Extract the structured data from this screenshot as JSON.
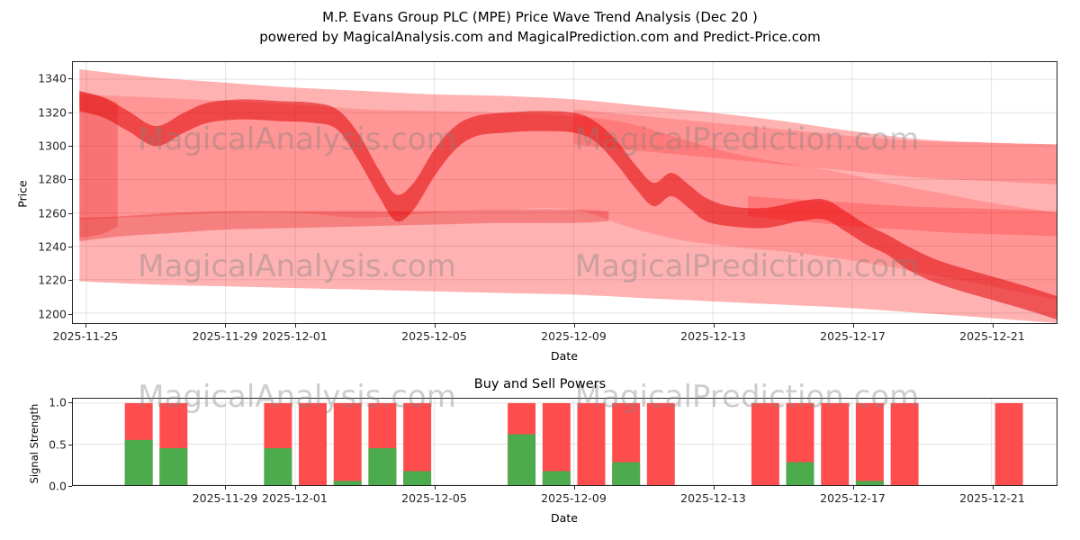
{
  "figure": {
    "title_line1": "M.P. Evans Group PLC (MPE) Price Wave Trend Analysis (Dec 20 )",
    "title_line2": "powered by MagicalAnalysis.com and MagicalPrediction.com and Predict-Price.com"
  },
  "watermarks": {
    "analysis": "MagicalAnalysis.com",
    "prediction": "MagicalPrediction.com"
  },
  "colors": {
    "band_red": "#ff0000",
    "band_dark_red": "#e00000",
    "sell_bar": "#ff4d4d",
    "buy_bar": "#4cab4c",
    "grid": "#e3e3e3"
  },
  "price_chart": {
    "ylabel": "Price",
    "xlabel": "Date",
    "yticks": [
      1200,
      1220,
      1240,
      1260,
      1280,
      1300,
      1320,
      1340
    ],
    "xticks": [
      {
        "label": "2025-11-25",
        "d": 0
      },
      {
        "label": "2025-11-29",
        "d": 4
      },
      {
        "label": "2025-12-01",
        "d": 6
      },
      {
        "label": "2025-12-05",
        "d": 10
      },
      {
        "label": "2025-12-09",
        "d": 14
      },
      {
        "label": "2025-12-13",
        "d": 18
      },
      {
        "label": "2025-12-17",
        "d": 22
      },
      {
        "label": "2025-12-21",
        "d": 26
      }
    ]
  },
  "signal_chart": {
    "title": "Buy and Sell Powers",
    "ylabel": "Signal Strength",
    "xlabel": "Date",
    "yticks": [
      {
        "label": "0.0",
        "v": 0
      },
      {
        "label": "0.5",
        "v": 0.5
      },
      {
        "label": "1.0",
        "v": 1
      }
    ],
    "xticks": [
      {
        "label": "2025-11-29",
        "d": 4
      },
      {
        "label": "2025-12-01",
        "d": 6
      },
      {
        "label": "2025-12-05",
        "d": 10
      },
      {
        "label": "2025-12-09",
        "d": 14
      },
      {
        "label": "2025-12-13",
        "d": 18
      },
      {
        "label": "2025-12-17",
        "d": 22
      },
      {
        "label": "2025-12-21",
        "d": 26
      }
    ]
  },
  "chart_data": [
    {
      "type": "area",
      "title": "M.P. Evans Group PLC (MPE) Price Wave Trend Analysis (Dec 20 )",
      "xlabel": "Date",
      "ylabel": "Price",
      "ylim": [
        1194,
        1350
      ],
      "x_axis": "day offset from 2025-11-25",
      "x_range": [
        -0.2,
        27.9
      ],
      "grid": true,
      "bands": [
        {
          "name": "envelope",
          "color": "#ff0000",
          "opacity": 0.3,
          "points": [
            [
              -0.2,
              1346,
              1219
            ],
            [
              2,
              1341,
              1217
            ],
            [
              4,
              1338,
              1216
            ],
            [
              6,
              1335,
              1215
            ],
            [
              8,
              1333,
              1214
            ],
            [
              10,
              1331,
              1213
            ],
            [
              12,
              1330,
              1212
            ],
            [
              14,
              1328,
              1211
            ],
            [
              16,
              1324,
              1209
            ],
            [
              18,
              1320,
              1207
            ],
            [
              20,
              1315,
              1205
            ],
            [
              22,
              1309,
              1203
            ],
            [
              24,
              1304,
              1200
            ],
            [
              26,
              1302,
              1197
            ],
            [
              27.9,
              1301,
              1194
            ]
          ]
        },
        {
          "name": "mid",
          "color": "#ff0000",
          "opacity": 0.16,
          "points": [
            [
              -0.2,
              1331,
              1256
            ],
            [
              2,
              1329,
              1258
            ],
            [
              4,
              1327,
              1260
            ],
            [
              6,
              1325,
              1260
            ],
            [
              8,
              1322,
              1257
            ],
            [
              10,
              1321,
              1260
            ],
            [
              12,
              1320,
              1262
            ],
            [
              14,
              1318,
              1262
            ],
            [
              15.5,
              1314,
              1252
            ],
            [
              17,
              1305,
              1244
            ],
            [
              18.5,
              1296,
              1240
            ],
            [
              20,
              1290,
              1237
            ],
            [
              21.5,
              1285,
              1233
            ],
            [
              23,
              1278,
              1228
            ],
            [
              24.5,
              1272,
              1222
            ],
            [
              26,
              1266,
              1216
            ],
            [
              27.9,
              1260,
              1208
            ]
          ]
        },
        {
          "name": "main-trend",
          "color": "#e00000",
          "opacity": 0.52,
          "points": [
            [
              -0.2,
              1333,
              1321
            ],
            [
              0.5,
              1329,
              1317
            ],
            [
              1.2,
              1321,
              1309
            ],
            [
              2,
              1312,
              1300
            ],
            [
              2.8,
              1320,
              1308
            ],
            [
              3.5,
              1326,
              1314
            ],
            [
              4.5,
              1328,
              1316
            ],
            [
              5.5,
              1327,
              1315
            ],
            [
              6.5,
              1326,
              1314
            ],
            [
              7.2,
              1322,
              1310
            ],
            [
              7.8,
              1308,
              1292
            ],
            [
              8.4,
              1286,
              1270
            ],
            [
              8.9,
              1271,
              1255
            ],
            [
              9.4,
              1278,
              1262
            ],
            [
              10,
              1298,
              1282
            ],
            [
              10.6,
              1312,
              1298
            ],
            [
              11.2,
              1318,
              1306
            ],
            [
              12,
              1320,
              1308
            ],
            [
              13,
              1321,
              1309
            ],
            [
              14,
              1320,
              1308
            ],
            [
              14.6,
              1315,
              1303
            ],
            [
              15.2,
              1304,
              1290
            ],
            [
              15.8,
              1288,
              1274
            ],
            [
              16.3,
              1278,
              1264
            ],
            [
              16.8,
              1284,
              1270
            ],
            [
              17.3,
              1277,
              1263
            ],
            [
              17.8,
              1269,
              1255
            ],
            [
              18.5,
              1264,
              1252
            ],
            [
              19.5,
              1263,
              1251
            ],
            [
              20.5,
              1267,
              1255
            ],
            [
              21.2,
              1268,
              1256
            ],
            [
              21.8,
              1261,
              1249
            ],
            [
              22.4,
              1253,
              1241
            ],
            [
              23,
              1247,
              1235
            ],
            [
              23.6,
              1240,
              1226
            ],
            [
              24.3,
              1233,
              1219
            ],
            [
              25,
              1228,
              1214
            ],
            [
              26,
              1222,
              1208
            ],
            [
              27,
              1216,
              1202
            ],
            [
              27.9,
              1210,
              1196
            ]
          ]
        },
        {
          "name": "low-left",
          "color": "#e00000",
          "opacity": 0.28,
          "points": [
            [
              -0.2,
              1257,
              1243
            ],
            [
              1,
              1258,
              1246
            ],
            [
              2.5,
              1260,
              1248
            ],
            [
              4,
              1261,
              1250
            ],
            [
              6,
              1261,
              1251
            ],
            [
              8,
              1261,
              1252
            ],
            [
              10,
              1261,
              1253
            ],
            [
              12,
              1262,
              1254
            ],
            [
              14,
              1262,
              1254
            ],
            [
              15,
              1261,
              1255
            ]
          ]
        },
        {
          "name": "upper-right",
          "color": "#ff0000",
          "opacity": 0.18,
          "points": [
            [
              14,
              1322,
              1301
            ],
            [
              16,
              1318,
              1297
            ],
            [
              18,
              1314,
              1293
            ],
            [
              20,
              1310,
              1289
            ],
            [
              22,
              1306,
              1285
            ],
            [
              24,
              1303,
              1281
            ],
            [
              26,
              1302,
              1279
            ],
            [
              27.9,
              1301,
              1277
            ]
          ]
        },
        {
          "name": "lower-right",
          "color": "#ff0000",
          "opacity": 0.2,
          "points": [
            [
              19,
              1270,
              1258
            ],
            [
              20.5,
              1268,
              1255
            ],
            [
              22,
              1266,
              1252
            ],
            [
              23.5,
              1264,
              1250
            ],
            [
              25,
              1263,
              1248
            ],
            [
              26.5,
              1262,
              1247
            ],
            [
              27.9,
              1261,
              1246
            ]
          ]
        },
        {
          "name": "left-edge",
          "color": "#e00000",
          "opacity": 0.22,
          "points": [
            [
              -0.2,
              1333,
              1245
            ],
            [
              0.4,
              1330,
              1247
            ],
            [
              0.9,
              1326,
              1252
            ]
          ]
        }
      ]
    },
    {
      "type": "bar",
      "title": "Buy and Sell Powers",
      "xlabel": "Date",
      "ylabel": "Signal Strength",
      "ylim": [
        0,
        1.05
      ],
      "series_names": [
        "sell_power",
        "buy_power"
      ],
      "bars": [
        {
          "date": "2025-11-26",
          "d": 1,
          "sell": 1.0,
          "buy": 0.55
        },
        {
          "date": "2025-11-27",
          "d": 2,
          "sell": 1.0,
          "buy": 0.45
        },
        {
          "date": "2025-11-30",
          "d": 5,
          "sell": 1.0,
          "buy": 0.45
        },
        {
          "date": "2025-12-01",
          "d": 6,
          "sell": 1.0,
          "buy": 0.0
        },
        {
          "date": "2025-12-02",
          "d": 7,
          "sell": 1.0,
          "buy": 0.05
        },
        {
          "date": "2025-12-03",
          "d": 8,
          "sell": 1.0,
          "buy": 0.45
        },
        {
          "date": "2025-12-04",
          "d": 9,
          "sell": 1.0,
          "buy": 0.17
        },
        {
          "date": "2025-12-07",
          "d": 12,
          "sell": 1.0,
          "buy": 0.62
        },
        {
          "date": "2025-12-08",
          "d": 13,
          "sell": 1.0,
          "buy": 0.17
        },
        {
          "date": "2025-12-09",
          "d": 14,
          "sell": 1.0,
          "buy": 0.0
        },
        {
          "date": "2025-12-10",
          "d": 15,
          "sell": 1.0,
          "buy": 0.28
        },
        {
          "date": "2025-12-11",
          "d": 16,
          "sell": 1.0,
          "buy": 0.0
        },
        {
          "date": "2025-12-14",
          "d": 19,
          "sell": 1.0,
          "buy": 0.0
        },
        {
          "date": "2025-12-15",
          "d": 20,
          "sell": 1.0,
          "buy": 0.28
        },
        {
          "date": "2025-12-16",
          "d": 21,
          "sell": 1.0,
          "buy": 0.0
        },
        {
          "date": "2025-12-17",
          "d": 22,
          "sell": 1.0,
          "buy": 0.05
        },
        {
          "date": "2025-12-18",
          "d": 23,
          "sell": 1.0,
          "buy": 0.0
        },
        {
          "date": "2025-12-21",
          "d": 26,
          "sell": 1.0,
          "buy": 0.0
        }
      ]
    }
  ]
}
